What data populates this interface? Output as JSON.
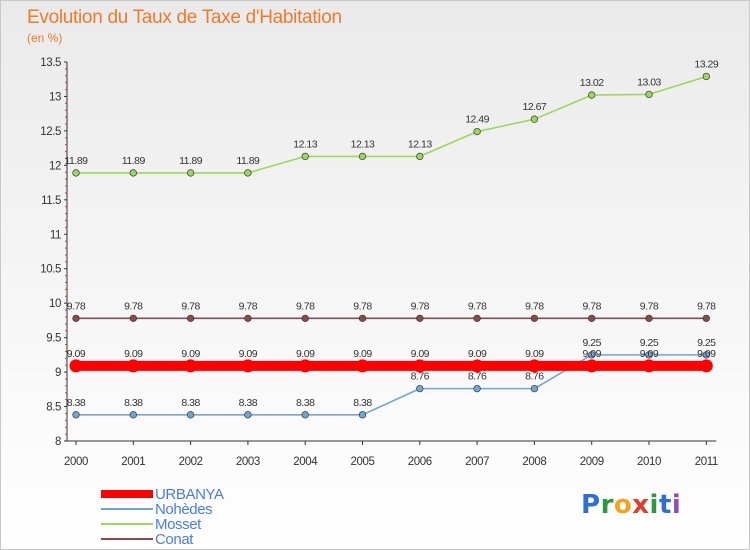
{
  "title": "Evolution du Taux de Taxe d'Habitation",
  "unit": "(en %)",
  "logo_text": "Proxiti",
  "chart_data": {
    "type": "line",
    "title": "Evolution du Taux de Taxe d'Habitation",
    "ylabel": "(en %)",
    "xlabel": "",
    "ylim": [
      8,
      13.5
    ],
    "y_ticks": [
      "8",
      "8.5",
      "9",
      "9.5",
      "10",
      "10.5",
      "11",
      "11.5",
      "12",
      "12.5",
      "13",
      "13.5"
    ],
    "categories": [
      "2000",
      "2001",
      "2002",
      "2003",
      "2004",
      "2005",
      "2006",
      "2007",
      "2008",
      "2009",
      "2010",
      "2011"
    ],
    "legend_position": "bottom-left",
    "grid": false,
    "series": [
      {
        "name": "URBANYA",
        "color": "#ff0000",
        "emphasis": true,
        "values": [
          9.09,
          9.09,
          9.09,
          9.09,
          9.09,
          9.09,
          9.09,
          9.09,
          9.09,
          9.09,
          9.09,
          9.09
        ],
        "labels": [
          "9.09",
          "9.09",
          "9.09",
          "9.09",
          "9.09",
          "9.09",
          "9.09",
          "9.09",
          "9.09",
          "9.09",
          "9.09",
          "9.09"
        ]
      },
      {
        "name": "Nohèdes",
        "color": "#6fa6d8",
        "values": [
          8.38,
          8.38,
          8.38,
          8.38,
          8.38,
          8.38,
          8.76,
          8.76,
          8.76,
          9.25,
          9.25,
          9.25
        ],
        "labels": [
          "8.38",
          "8.38",
          "8.38",
          "8.38",
          "8.38",
          "8.38",
          "8.76",
          "8.76",
          "8.76",
          "9.25",
          "9.25",
          "9.25"
        ]
      },
      {
        "name": "Mosset",
        "color": "#9ad85a",
        "values": [
          11.89,
          11.89,
          11.89,
          11.89,
          12.13,
          12.13,
          12.13,
          12.49,
          12.67,
          13.02,
          13.03,
          13.29
        ],
        "labels": [
          "11.89",
          "11.89",
          "11.89",
          "11.89",
          "12.13",
          "12.13",
          "12.13",
          "12.49",
          "12.67",
          "13.02",
          "13.03",
          "13.29"
        ]
      },
      {
        "name": "Conat",
        "color": "#8c4a4a",
        "values": [
          9.78,
          9.78,
          9.78,
          9.78,
          9.78,
          9.78,
          9.78,
          9.78,
          9.78,
          9.78,
          9.78,
          9.78
        ],
        "labels": [
          "9.78",
          "9.78",
          "9.78",
          "9.78",
          "9.78",
          "9.78",
          "9.78",
          "9.78",
          "9.78",
          "9.78",
          "9.78",
          "9.78"
        ]
      }
    ]
  }
}
